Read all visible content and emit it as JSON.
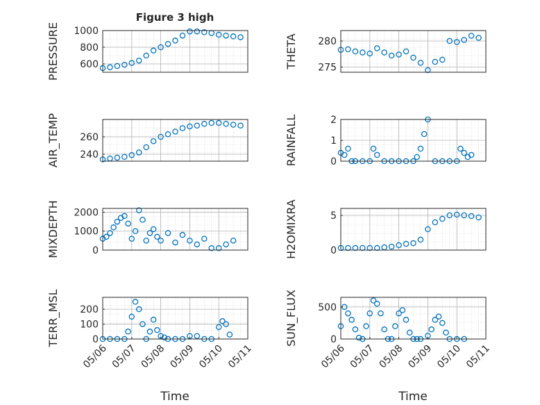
{
  "figure": {
    "title": "Figure 3 high",
    "xlabel": "Time",
    "marker_color": "#0072BD",
    "axis_color": "#262626",
    "grid_color": "#c8c8c8"
  },
  "chart_data": [
    {
      "type": "scatter",
      "ylabel": "PRESSURE",
      "ylim": [
        500,
        1000
      ],
      "yticks": [
        600,
        800,
        1000
      ],
      "xlim": [
        "05/06",
        "05/11"
      ],
      "xticks": [],
      "grid": true,
      "x": [
        "05/06 00:00",
        "05/06 06:00",
        "05/06 12:00",
        "05/06 18:00",
        "05/07 00:00",
        "05/07 06:00",
        "05/07 12:00",
        "05/07 18:00",
        "05/08 00:00",
        "05/08 06:00",
        "05/08 12:00",
        "05/08 18:00",
        "05/09 00:00",
        "05/09 06:00",
        "05/09 12:00",
        "05/09 18:00",
        "05/10 00:00",
        "05/10 06:00",
        "05/10 12:00",
        "05/10 18:00"
      ],
      "y": [
        550,
        560,
        575,
        590,
        610,
        640,
        700,
        760,
        800,
        840,
        880,
        940,
        990,
        990,
        980,
        970,
        950,
        940,
        930,
        920
      ]
    },
    {
      "type": "scatter",
      "ylabel": "THETA",
      "ylim": [
        274,
        282
      ],
      "yticks": [
        275,
        280
      ],
      "xlim": [
        "05/06",
        "05/11"
      ],
      "xticks": [],
      "grid": true,
      "x": [
        "05/06 00:00",
        "05/06 06:00",
        "05/06 12:00",
        "05/06 18:00",
        "05/07 00:00",
        "05/07 06:00",
        "05/07 12:00",
        "05/07 18:00",
        "05/08 00:00",
        "05/08 06:00",
        "05/08 12:00",
        "05/08 18:00",
        "05/09 00:00",
        "05/09 06:00",
        "05/09 12:00",
        "05/09 18:00",
        "05/10 00:00",
        "05/10 06:00",
        "05/10 12:00",
        "05/10 18:00"
      ],
      "y": [
        278.3,
        278.4,
        278.0,
        277.8,
        277.6,
        278.6,
        277.8,
        277.2,
        277.4,
        278.0,
        276.8,
        275.8,
        274.4,
        276.0,
        276.4,
        280.0,
        279.8,
        280.2,
        281.0,
        280.6
      ]
    },
    {
      "type": "scatter",
      "ylabel": "AIR_TEMP",
      "ylim": [
        232,
        280
      ],
      "yticks": [
        240,
        260
      ],
      "xlim": [
        "05/06",
        "05/11"
      ],
      "xticks": [],
      "grid": true,
      "x": [
        "05/06 00:00",
        "05/06 06:00",
        "05/06 12:00",
        "05/06 18:00",
        "05/07 00:00",
        "05/07 06:00",
        "05/07 12:00",
        "05/07 18:00",
        "05/08 00:00",
        "05/08 06:00",
        "05/08 12:00",
        "05/08 18:00",
        "05/09 00:00",
        "05/09 06:00",
        "05/09 12:00",
        "05/09 18:00",
        "05/10 00:00",
        "05/10 06:00",
        "05/10 12:00",
        "05/10 18:00"
      ],
      "y": [
        234,
        235,
        236,
        237,
        239,
        242,
        248,
        255,
        260,
        263,
        266,
        270,
        272,
        273,
        275,
        276,
        276,
        275,
        274,
        273
      ]
    },
    {
      "type": "scatter",
      "ylabel": "RAINFALL",
      "ylim": [
        0,
        2
      ],
      "yticks": [
        0,
        1,
        2
      ],
      "xlim": [
        "05/06",
        "05/11"
      ],
      "xticks": [],
      "grid": true,
      "x": [
        "05/06 00:00",
        "05/06 03:00",
        "05/06 06:00",
        "05/06 09:00",
        "05/06 12:00",
        "05/06 18:00",
        "05/07 00:00",
        "05/07 03:00",
        "05/07 06:00",
        "05/07 12:00",
        "05/07 18:00",
        "05/08 00:00",
        "05/08 06:00",
        "05/08 12:00",
        "05/08 15:00",
        "05/08 18:00",
        "05/08 21:00",
        "05/09 00:00",
        "05/09 06:00",
        "05/09 12:00",
        "05/09 18:00",
        "05/10 00:00",
        "05/10 03:00",
        "05/10 06:00",
        "05/10 09:00",
        "05/10 12:00"
      ],
      "y": [
        0.4,
        0.3,
        0.6,
        0.0,
        0.0,
        0.0,
        0.0,
        0.6,
        0.3,
        0.0,
        0.0,
        0.0,
        0.0,
        0.0,
        0.2,
        0.6,
        1.3,
        2.0,
        0.0,
        0.0,
        0.0,
        0.0,
        0.6,
        0.4,
        0.2,
        0.3
      ]
    },
    {
      "type": "scatter",
      "ylabel": "MIXDEPTH",
      "ylim": [
        0,
        2200
      ],
      "yticks": [
        0,
        1000,
        2000
      ],
      "xlim": [
        "05/06",
        "05/11"
      ],
      "xticks": [],
      "grid": true,
      "x": [
        "05/06 00:00",
        "05/06 03:00",
        "05/06 06:00",
        "05/06 09:00",
        "05/06 12:00",
        "05/06 15:00",
        "05/06 18:00",
        "05/06 21:00",
        "05/07 00:00",
        "05/07 03:00",
        "05/07 06:00",
        "05/07 09:00",
        "05/07 12:00",
        "05/07 15:00",
        "05/07 18:00",
        "05/07 21:00",
        "05/08 00:00",
        "05/08 06:00",
        "05/08 12:00",
        "05/08 18:00",
        "05/09 00:00",
        "05/09 06:00",
        "05/09 12:00",
        "05/09 18:00",
        "05/10 00:00",
        "05/10 06:00",
        "05/10 12:00"
      ],
      "y": [
        600,
        700,
        900,
        1200,
        1500,
        1700,
        1800,
        1400,
        600,
        1000,
        2100,
        1600,
        500,
        900,
        1100,
        700,
        500,
        900,
        400,
        800,
        500,
        300,
        600,
        100,
        100,
        300,
        500
      ]
    },
    {
      "type": "scatter",
      "ylabel": "H2OMIXRA",
      "ylim": [
        0,
        6
      ],
      "yticks": [
        0,
        5
      ],
      "xlim": [
        "05/06",
        "05/11"
      ],
      "xticks": [],
      "grid": true,
      "x": [
        "05/06 00:00",
        "05/06 06:00",
        "05/06 12:00",
        "05/06 18:00",
        "05/07 00:00",
        "05/07 06:00",
        "05/07 12:00",
        "05/07 18:00",
        "05/08 00:00",
        "05/08 06:00",
        "05/08 12:00",
        "05/08 18:00",
        "05/09 00:00",
        "05/09 06:00",
        "05/09 12:00",
        "05/09 18:00",
        "05/10 00:00",
        "05/10 06:00",
        "05/10 12:00",
        "05/10 18:00"
      ],
      "y": [
        0.3,
        0.3,
        0.3,
        0.3,
        0.3,
        0.3,
        0.4,
        0.5,
        0.7,
        0.9,
        1.0,
        1.5,
        3.0,
        4.0,
        4.5,
        5.0,
        5.1,
        5.0,
        4.9,
        4.7
      ]
    },
    {
      "type": "scatter",
      "ylabel": "TERR_MSL",
      "ylim": [
        0,
        280
      ],
      "yticks": [
        0,
        100,
        200
      ],
      "xlim": [
        "05/06",
        "05/11"
      ],
      "xticks": [
        "05/06",
        "05/07",
        "05/08",
        "05/09",
        "05/10",
        "05/11"
      ],
      "grid": true,
      "x": [
        "05/06 00:00",
        "05/06 06:00",
        "05/06 12:00",
        "05/06 18:00",
        "05/06 21:00",
        "05/07 00:00",
        "05/07 03:00",
        "05/07 06:00",
        "05/07 09:00",
        "05/07 12:00",
        "05/07 15:00",
        "05/07 18:00",
        "05/07 21:00",
        "05/08 00:00",
        "05/08 03:00",
        "05/08 06:00",
        "05/08 12:00",
        "05/08 18:00",
        "05/09 00:00",
        "05/09 06:00",
        "05/09 12:00",
        "05/09 18:00",
        "05/10 00:00",
        "05/10 03:00",
        "05/10 06:00",
        "05/10 09:00"
      ],
      "y": [
        0,
        0,
        0,
        0,
        50,
        150,
        250,
        200,
        100,
        0,
        50,
        130,
        60,
        20,
        10,
        0,
        0,
        0,
        20,
        20,
        0,
        0,
        80,
        120,
        100,
        30
      ]
    },
    {
      "type": "scatter",
      "ylabel": "SUN_FLUX",
      "ylim": [
        0,
        650
      ],
      "yticks": [
        0,
        500
      ],
      "xlim": [
        "05/06",
        "05/11"
      ],
      "xticks": [
        "05/06",
        "05/07",
        "05/08",
        "05/09",
        "05/10",
        "05/11"
      ],
      "grid": true,
      "x": [
        "05/06 00:00",
        "05/06 03:00",
        "05/06 06:00",
        "05/06 09:00",
        "05/06 12:00",
        "05/06 15:00",
        "05/06 18:00",
        "05/06 21:00",
        "05/07 00:00",
        "05/07 03:00",
        "05/07 06:00",
        "05/07 09:00",
        "05/07 12:00",
        "05/07 15:00",
        "05/07 18:00",
        "05/07 21:00",
        "05/08 00:00",
        "05/08 03:00",
        "05/08 06:00",
        "05/08 09:00",
        "05/08 12:00",
        "05/08 15:00",
        "05/08 18:00",
        "05/09 00:00",
        "05/09 03:00",
        "05/09 06:00",
        "05/09 09:00",
        "05/09 12:00",
        "05/09 15:00",
        "05/09 18:00",
        "05/10 00:00",
        "05/10 06:00"
      ],
      "y": [
        200,
        500,
        400,
        300,
        150,
        20,
        0,
        200,
        400,
        600,
        550,
        400,
        150,
        0,
        0,
        200,
        400,
        450,
        300,
        100,
        0,
        0,
        0,
        50,
        150,
        300,
        350,
        250,
        100,
        0,
        0,
        0
      ]
    }
  ]
}
